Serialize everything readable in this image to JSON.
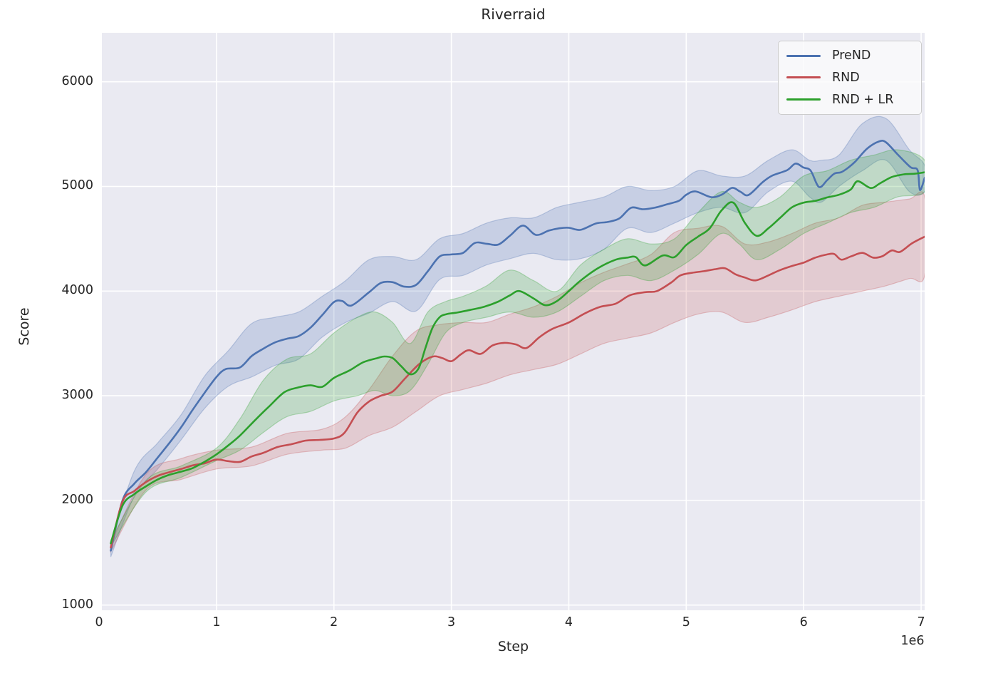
{
  "theme": {
    "figure_bg": "#ffffff",
    "axes_bg": "#eaeaf2",
    "grid_color": "#ffffff",
    "text_color": "#262626",
    "legend_border": "#cccccc"
  },
  "chart_data": {
    "type": "line",
    "title": "Riverraid",
    "xlabel": "Step",
    "ylabel": "Score",
    "x_offset_label": "1e6",
    "xlim": [
      0.024,
      7.03
    ],
    "ylim": [
      950,
      6468
    ],
    "x_ticks": [
      0,
      1,
      2,
      3,
      4,
      5,
      6,
      7
    ],
    "y_ticks": [
      1000,
      2000,
      3000,
      4000,
      5000,
      6000
    ],
    "grid": true,
    "legend_position": "upper right",
    "series": [
      {
        "name": "PreND",
        "color": "#4C72B0",
        "band_alpha": 0.22,
        "x": [
          0.1,
          0.2,
          0.3,
          0.4,
          0.5,
          0.6,
          0.7,
          0.8,
          0.9,
          1.0,
          1.08,
          1.2,
          1.3,
          1.4,
          1.5,
          1.6,
          1.7,
          1.8,
          1.9,
          2.0,
          2.07,
          2.15,
          2.3,
          2.4,
          2.5,
          2.6,
          2.7,
          2.8,
          2.9,
          3.0,
          3.1,
          3.2,
          3.3,
          3.4,
          3.5,
          3.61,
          3.72,
          3.83,
          3.92,
          4.0,
          4.1,
          4.23,
          4.33,
          4.43,
          4.53,
          4.63,
          4.73,
          4.84,
          4.94,
          5.0,
          5.08,
          5.21,
          5.3,
          5.39,
          5.46,
          5.53,
          5.65,
          5.73,
          5.86,
          5.93,
          6.0,
          6.06,
          6.13,
          6.2,
          6.26,
          6.32,
          6.38,
          6.44,
          6.54,
          6.64,
          6.7,
          6.8,
          6.91,
          6.97,
          6.99,
          7.03
        ],
        "mean": [
          1520,
          2000,
          2160,
          2270,
          2410,
          2550,
          2700,
          2870,
          3030,
          3180,
          3255,
          3270,
          3380,
          3450,
          3510,
          3545,
          3570,
          3650,
          3770,
          3895,
          3905,
          3862,
          3990,
          4078,
          4085,
          4042,
          4060,
          4190,
          4330,
          4350,
          4365,
          4460,
          4452,
          4445,
          4530,
          4626,
          4537,
          4578,
          4600,
          4605,
          4585,
          4646,
          4660,
          4694,
          4796,
          4782,
          4796,
          4830,
          4864,
          4920,
          4952,
          4898,
          4920,
          4986,
          4950,
          4918,
          5040,
          5102,
          5156,
          5218,
          5180,
          5150,
          4995,
          5060,
          5122,
          5136,
          5180,
          5238,
          5361,
          5429,
          5422,
          5306,
          5184,
          5156,
          4966,
          5082
        ],
        "band_x": [
          0.1,
          0.3,
          0.5,
          0.7,
          0.9,
          1.1,
          1.3,
          1.5,
          1.7,
          1.9,
          2.1,
          2.3,
          2.5,
          2.7,
          2.9,
          3.1,
          3.3,
          3.5,
          3.7,
          3.9,
          4.1,
          4.3,
          4.5,
          4.7,
          4.9,
          5.1,
          5.3,
          5.5,
          5.7,
          5.9,
          6.05,
          6.15,
          6.3,
          6.5,
          6.7,
          6.9,
          7.03
        ],
        "band_lo": [
          1460,
          2040,
          2300,
          2580,
          2880,
          3090,
          3180,
          3290,
          3350,
          3560,
          3700,
          3790,
          3900,
          3810,
          4110,
          4150,
          4250,
          4310,
          4360,
          4300,
          4310,
          4400,
          4600,
          4560,
          4650,
          4750,
          4800,
          4750,
          4950,
          5050,
          4900,
          4850,
          5000,
          5150,
          5250,
          4950,
          4950
        ],
        "band_hi": [
          1580,
          2280,
          2550,
          2820,
          3190,
          3430,
          3690,
          3750,
          3800,
          3950,
          4100,
          4300,
          4330,
          4300,
          4500,
          4550,
          4650,
          4700,
          4700,
          4800,
          4850,
          4900,
          5000,
          4960,
          5000,
          5150,
          5100,
          5100,
          5250,
          5350,
          5250,
          5250,
          5300,
          5600,
          5650,
          5350,
          5200
        ]
      },
      {
        "name": "RND",
        "color": "#C44E52",
        "band_alpha": 0.2,
        "x": [
          0.1,
          0.2,
          0.3,
          0.4,
          0.5,
          0.6,
          0.7,
          0.8,
          0.9,
          1.0,
          1.1,
          1.2,
          1.3,
          1.4,
          1.52,
          1.64,
          1.76,
          1.88,
          2.0,
          2.09,
          2.2,
          2.3,
          2.4,
          2.5,
          2.61,
          2.73,
          2.84,
          2.92,
          3.0,
          3.08,
          3.15,
          3.25,
          3.35,
          3.45,
          3.55,
          3.64,
          3.75,
          3.86,
          4.0,
          4.14,
          4.27,
          4.4,
          4.52,
          4.65,
          4.75,
          4.87,
          4.95,
          5.05,
          5.15,
          5.25,
          5.33,
          5.42,
          5.5,
          5.59,
          5.7,
          5.79,
          5.9,
          6.0,
          6.1,
          6.2,
          6.26,
          6.32,
          6.4,
          6.5,
          6.59,
          6.67,
          6.75,
          6.82,
          6.92,
          7.03
        ],
        "mean": [
          1550,
          1990,
          2090,
          2175,
          2235,
          2270,
          2300,
          2335,
          2355,
          2390,
          2375,
          2368,
          2420,
          2455,
          2510,
          2537,
          2571,
          2578,
          2592,
          2646,
          2840,
          2945,
          3000,
          3040,
          3170,
          3306,
          3374,
          3361,
          3330,
          3395,
          3435,
          3400,
          3480,
          3505,
          3490,
          3456,
          3560,
          3639,
          3700,
          3789,
          3850,
          3880,
          3960,
          3990,
          4000,
          4080,
          4150,
          4175,
          4190,
          4210,
          4218,
          4160,
          4129,
          4102,
          4150,
          4197,
          4240,
          4272,
          4320,
          4350,
          4354,
          4300,
          4330,
          4365,
          4320,
          4333,
          4388,
          4374,
          4455,
          4520
        ],
        "band_x": [
          0.1,
          0.4,
          0.7,
          1.0,
          1.3,
          1.6,
          1.9,
          2.1,
          2.3,
          2.5,
          2.7,
          2.9,
          3.1,
          3.3,
          3.5,
          3.7,
          3.9,
          4.1,
          4.3,
          4.5,
          4.7,
          4.9,
          5.1,
          5.3,
          5.5,
          5.7,
          5.9,
          6.1,
          6.3,
          6.5,
          6.7,
          6.9,
          7.03
        ],
        "band_lo": [
          1510,
          2100,
          2200,
          2300,
          2330,
          2440,
          2480,
          2500,
          2620,
          2700,
          2850,
          3000,
          3060,
          3120,
          3200,
          3250,
          3300,
          3400,
          3500,
          3550,
          3600,
          3700,
          3780,
          3800,
          3700,
          3750,
          3820,
          3900,
          3950,
          4000,
          4050,
          4120,
          4150
        ],
        "band_hi": [
          1590,
          2250,
          2400,
          2480,
          2510,
          2640,
          2680,
          2800,
          3060,
          3380,
          3620,
          3680,
          3700,
          3700,
          3780,
          3850,
          3950,
          4080,
          4180,
          4260,
          4350,
          4560,
          4600,
          4620,
          4450,
          4470,
          4550,
          4650,
          4700,
          4820,
          4850,
          4880,
          4900
        ]
      },
      {
        "name": "RND + LR",
        "color": "#2CA02C",
        "band_alpha": 0.22,
        "x": [
          0.1,
          0.2,
          0.3,
          0.4,
          0.5,
          0.6,
          0.7,
          0.8,
          0.9,
          1.0,
          1.1,
          1.2,
          1.34,
          1.45,
          1.58,
          1.7,
          1.8,
          1.9,
          2.0,
          2.13,
          2.25,
          2.37,
          2.43,
          2.5,
          2.57,
          2.65,
          2.72,
          2.78,
          2.84,
          2.9,
          2.96,
          3.05,
          3.16,
          3.28,
          3.4,
          3.5,
          3.58,
          3.7,
          3.8,
          3.9,
          4.0,
          4.1,
          4.25,
          4.4,
          4.5,
          4.57,
          4.65,
          4.8,
          4.9,
          5.0,
          5.1,
          5.2,
          5.3,
          5.4,
          5.5,
          5.6,
          5.7,
          5.8,
          5.9,
          6.0,
          6.1,
          6.2,
          6.3,
          6.4,
          6.46,
          6.57,
          6.65,
          6.75,
          6.85,
          6.95,
          7.03
        ],
        "mean": [
          1590,
          1950,
          2060,
          2135,
          2200,
          2245,
          2275,
          2310,
          2370,
          2440,
          2525,
          2620,
          2780,
          2900,
          3035,
          3080,
          3100,
          3085,
          3170,
          3240,
          3320,
          3360,
          3375,
          3360,
          3285,
          3205,
          3260,
          3460,
          3650,
          3750,
          3780,
          3795,
          3820,
          3850,
          3900,
          3960,
          4000,
          3930,
          3865,
          3905,
          4000,
          4100,
          4220,
          4300,
          4320,
          4325,
          4245,
          4340,
          4325,
          4440,
          4520,
          4600,
          4770,
          4845,
          4650,
          4528,
          4600,
          4700,
          4800,
          4845,
          4862,
          4895,
          4920,
          4970,
          5050,
          4985,
          5030,
          5090,
          5115,
          5122,
          5135
        ],
        "band_x": [
          0.1,
          0.4,
          0.7,
          1.0,
          1.2,
          1.4,
          1.6,
          1.8,
          2.0,
          2.2,
          2.35,
          2.5,
          2.65,
          2.8,
          2.95,
          3.1,
          3.3,
          3.5,
          3.7,
          3.9,
          4.1,
          4.3,
          4.5,
          4.7,
          4.9,
          5.1,
          5.3,
          5.45,
          5.6,
          5.8,
          6.0,
          6.2,
          6.4,
          6.6,
          6.8,
          7.03
        ],
        "band_lo": [
          1560,
          2080,
          2220,
          2380,
          2480,
          2650,
          2800,
          2850,
          2950,
          3000,
          3050,
          3000,
          3050,
          3300,
          3600,
          3700,
          3750,
          3800,
          3750,
          3800,
          3950,
          4100,
          4150,
          4100,
          4200,
          4350,
          4550,
          4450,
          4300,
          4400,
          4550,
          4650,
          4750,
          4800,
          4900,
          4950
        ],
        "band_hi": [
          1620,
          2190,
          2330,
          2500,
          2780,
          3150,
          3350,
          3400,
          3600,
          3750,
          3800,
          3700,
          3500,
          3800,
          3900,
          3950,
          4050,
          4200,
          4100,
          4000,
          4250,
          4400,
          4500,
          4450,
          4500,
          4750,
          4950,
          4850,
          4800,
          4900,
          5100,
          5150,
          5250,
          5300,
          5350,
          5250
        ]
      }
    ]
  }
}
